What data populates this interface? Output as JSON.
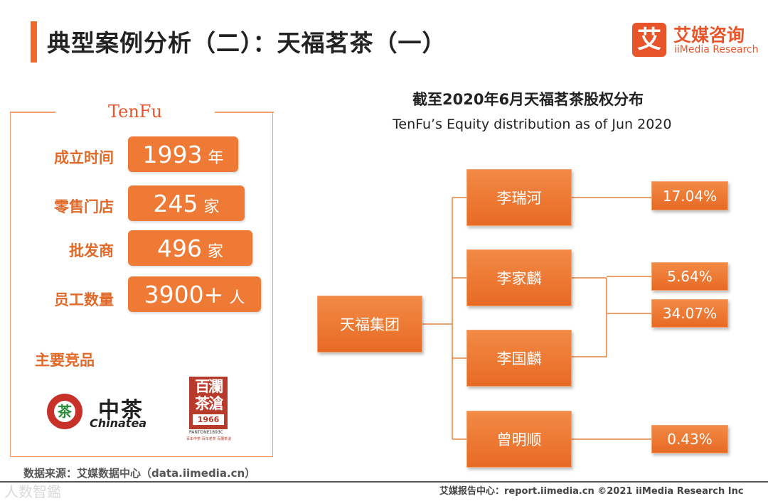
{
  "header": {
    "title": "典型案例分析（二）：天福茗茶（一）",
    "logo_mark": "艾",
    "logo_cn": "艾媒咨询",
    "logo_en": "iiMedia Research"
  },
  "company": {
    "brand": "TenFu",
    "stats": [
      {
        "label": "成立时间",
        "value": "1993",
        "unit": "年"
      },
      {
        "label": "零售门店",
        "value": "245",
        "unit": "家"
      },
      {
        "label": "批发商",
        "value": "496",
        "unit": "家"
      },
      {
        "label": "员工数量",
        "value": "3900+",
        "unit": "人"
      }
    ],
    "products_label": "主要竞品",
    "competitors": {
      "chinatea_cn": "中茶",
      "chinatea_en": "Chinatea",
      "chinatea_emblem": "茶",
      "second_line1": "百瀾",
      "second_line2": "茶滄",
      "second_year": "1966",
      "second_pantone": "PANTONE1893C",
      "second_tiny": "百年中茶 百年老茶 百瀾茶滄"
    }
  },
  "equity": {
    "title": "截至2020年6月天福茗茶股权分布",
    "subtitle": "TenFu’s Equity distribution as of Jun 2020",
    "root": "天福集团",
    "holders": [
      "李瑞河",
      "李家麟",
      "李国麟",
      "曾明顺"
    ],
    "percentages": [
      "17.04%",
      "5.64%",
      "34.07%",
      "0.43%"
    ]
  },
  "footer": {
    "source": "数据来源：艾媒数据中心（data.iimedia.cn）",
    "right": "艾媒报告中心：report.iimedia.cn   ©2021  iiMedia Research  Inc",
    "watermark": "人数智鑑"
  }
}
